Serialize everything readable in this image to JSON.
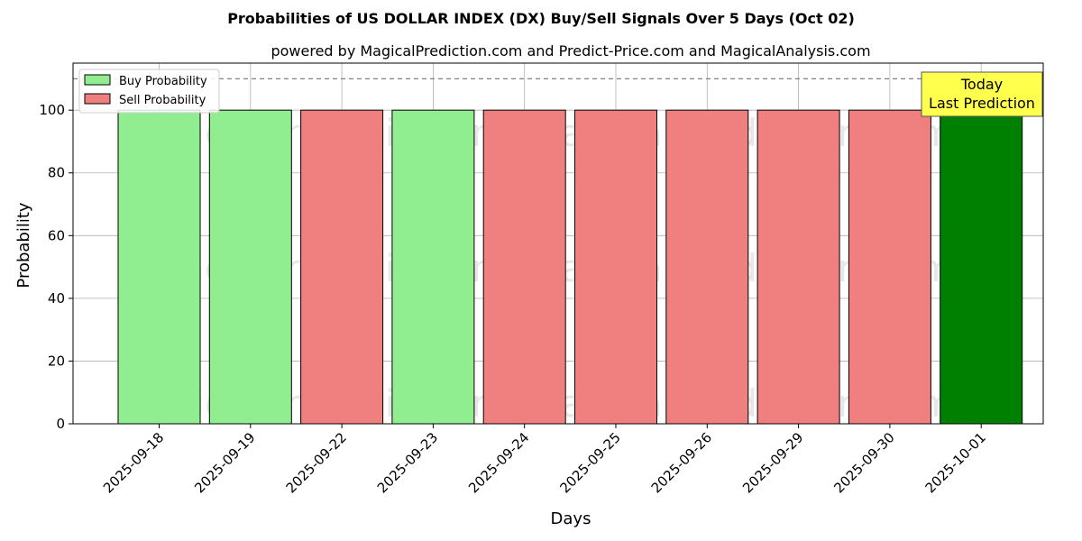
{
  "chart_data": {
    "type": "bar",
    "title": "Probabilities of US DOLLAR INDEX (DX) Buy/Sell Signals Over 5 Days (Oct 02)",
    "subtitle": "powered by MagicalPrediction.com and Predict-Price.com and MagicalAnalysis.com",
    "xlabel": "Days",
    "ylabel": "Probability",
    "ylim": [
      0,
      115
    ],
    "yticks": [
      0,
      20,
      40,
      60,
      80,
      100
    ],
    "reference_line": 110,
    "grid": true,
    "legend_position": "top-left",
    "categories": [
      "2025-09-18",
      "2025-09-19",
      "2025-09-22",
      "2025-09-23",
      "2025-09-24",
      "2025-09-25",
      "2025-09-26",
      "2025-09-29",
      "2025-09-30",
      "2025-10-01"
    ],
    "values": [
      100,
      100,
      100,
      100,
      100,
      100,
      100,
      100,
      100,
      100
    ],
    "signals": [
      "buy",
      "buy",
      "sell",
      "buy",
      "sell",
      "sell",
      "sell",
      "sell",
      "sell",
      "buy"
    ],
    "highlight_index": 9,
    "legend": [
      {
        "name": "Buy Probability",
        "color": "#90ee90"
      },
      {
        "name": "Sell Probability",
        "color": "#f08080"
      }
    ],
    "colors": {
      "buy": "#90ee90",
      "sell": "#f08080",
      "highlight": "#008000"
    },
    "annotation": {
      "line1": "Today",
      "line2": "Last Prediction",
      "background": "#ffff4d"
    },
    "watermarks": [
      "MagicalAnalysis.com",
      "MagicalPrediction.com"
    ]
  }
}
